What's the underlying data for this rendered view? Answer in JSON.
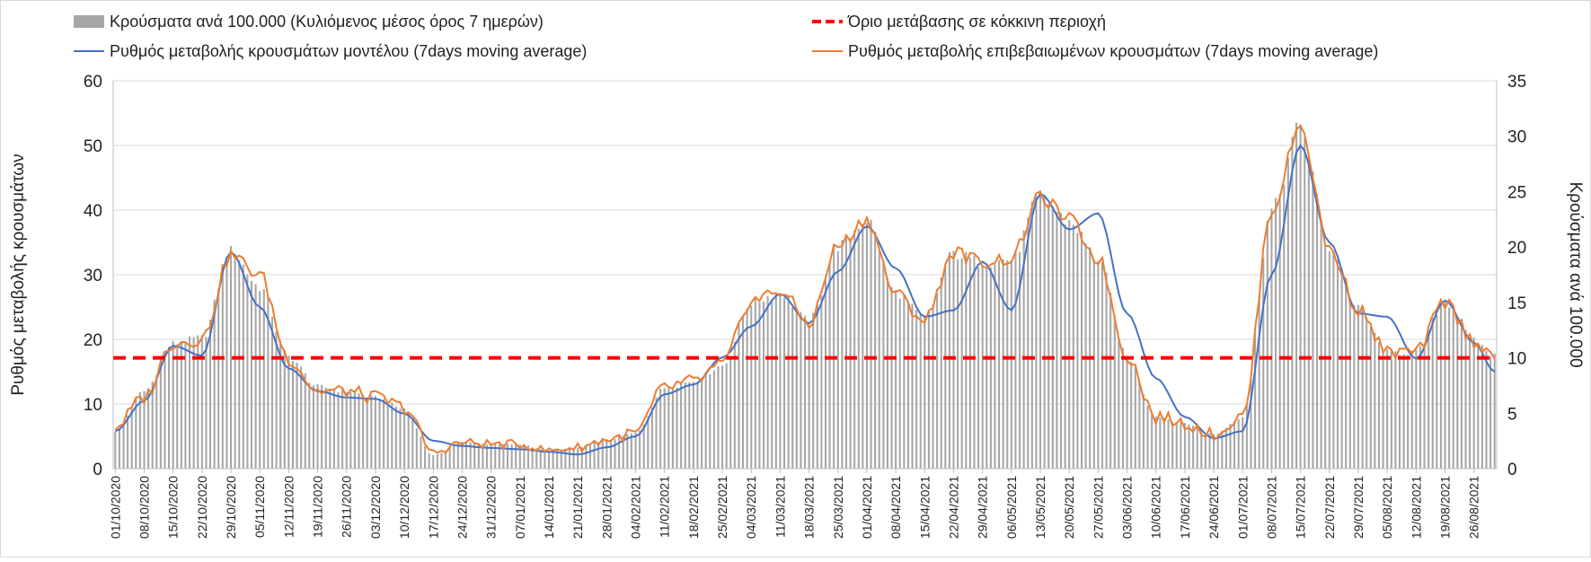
{
  "chart_data": {
    "type": "combo",
    "legend": {
      "bars_label": "Κρούσματα ανά 100.000 (Κυλιόμενος μέσος όρος 7 ημερών)",
      "threshold_label": "Όριο μετάβασης σε κόκκινη περιοχή",
      "model_label": "Ρυθμός μεταβολής κρουσμάτων μοντέλου (7days moving average)",
      "confirmed_label": "Ρυθμός μεταβολής επιβεβαιωμένων κρουσμάτων (7days moving average)",
      "placement": "top"
    },
    "ylabel_left": "Ρυθμός μεταβολής κρουσμάτων",
    "ylabel_right": "Κρούσματα ανά 100.000",
    "ylim_left": [
      0,
      60
    ],
    "ylim_right": [
      0,
      35
    ],
    "yticks_left": [
      "0",
      "10",
      "20",
      "30",
      "40",
      "50",
      "60"
    ],
    "yticks_right": [
      "0",
      "5",
      "10",
      "15",
      "20",
      "25",
      "30",
      "35"
    ],
    "x_start": "2020-10-01",
    "x_end": "2021-08-31",
    "x_tick_labels": [
      "01/10/2020",
      "08/10/2020",
      "15/10/2020",
      "22/10/2020",
      "29/10/2020",
      "05/11/2020",
      "12/11/2020",
      "19/11/2020",
      "26/11/2020",
      "03/12/2020",
      "10/12/2020",
      "17/12/2020",
      "24/12/2020",
      "31/12/2020",
      "07/01/2021",
      "14/01/2021",
      "21/01/2021",
      "28/01/2021",
      "04/02/2021",
      "11/02/2021",
      "18/02/2021",
      "25/02/2021",
      "04/03/2021",
      "11/03/2021",
      "18/03/2021",
      "25/03/2021",
      "01/04/2021",
      "08/04/2021",
      "15/04/2021",
      "22/04/2021",
      "29/04/2021",
      "06/05/2021",
      "13/05/2021",
      "20/05/2021",
      "27/05/2021",
      "03/06/2021",
      "10/06/2021",
      "17/06/2021",
      "24/06/2021",
      "01/07/2021",
      "08/07/2021",
      "15/07/2021",
      "22/07/2021",
      "29/07/2021",
      "05/08/2021",
      "12/08/2021",
      "19/08/2021",
      "26/08/2021"
    ],
    "grid": true,
    "threshold_right": 10,
    "colors": {
      "bars": "#a6a6a6",
      "model": "#4472c4",
      "confirmed": "#ed7d31",
      "threshold": "#ff0000",
      "grid": "#d9d9d9"
    },
    "series": [
      {
        "axis": "right",
        "kind": "bar",
        "points": [
          [
            "2020-10-01",
            3.4
          ],
          [
            "2020-10-08",
            7
          ],
          [
            "2020-10-15",
            11.3
          ],
          [
            "2020-10-22",
            11.8
          ],
          [
            "2020-10-29",
            19.6
          ],
          [
            "2020-11-05",
            16.4
          ],
          [
            "2020-11-12",
            10.1
          ],
          [
            "2020-11-19",
            7.4
          ],
          [
            "2020-11-26",
            7
          ],
          [
            "2020-12-03",
            6.4
          ],
          [
            "2020-12-10",
            5.4
          ],
          [
            "2020-12-17",
            1.2
          ],
          [
            "2020-12-24",
            2.4
          ],
          [
            "2020-12-31",
            2.2
          ],
          [
            "2021-01-07",
            2.2
          ],
          [
            "2021-01-14",
            1.6
          ],
          [
            "2021-01-21",
            1.9
          ],
          [
            "2021-01-28",
            2.6
          ],
          [
            "2021-02-04",
            3.2
          ],
          [
            "2021-02-11",
            7.3
          ],
          [
            "2021-02-18",
            7.9
          ],
          [
            "2021-02-25",
            9.3
          ],
          [
            "2021-03-04",
            15
          ],
          [
            "2021-03-11",
            15.9
          ],
          [
            "2021-03-18",
            13.3
          ],
          [
            "2021-03-25",
            20.1
          ],
          [
            "2021-04-01",
            22.5
          ],
          [
            "2021-04-08",
            15.9
          ],
          [
            "2021-04-15",
            13.6
          ],
          [
            "2021-04-22",
            19.4
          ],
          [
            "2021-04-29",
            18.6
          ],
          [
            "2021-05-06",
            18.9
          ],
          [
            "2021-05-13",
            24.5
          ],
          [
            "2021-05-20",
            22.3
          ],
          [
            "2021-05-27",
            19
          ],
          [
            "2021-06-03",
            10.1
          ],
          [
            "2021-06-10",
            4.7
          ],
          [
            "2021-06-17",
            4.1
          ],
          [
            "2021-06-24",
            3.1
          ],
          [
            "2021-07-01",
            4.7
          ],
          [
            "2021-07-08",
            23.3
          ],
          [
            "2021-07-15",
            30.9
          ],
          [
            "2021-07-22",
            19.9
          ],
          [
            "2021-07-29",
            14.4
          ],
          [
            "2021-08-05",
            10.5
          ],
          [
            "2021-08-12",
            10.5
          ],
          [
            "2021-08-19",
            15.1
          ],
          [
            "2021-08-26",
            11.5
          ],
          [
            "2021-08-31",
            10.2
          ]
        ]
      },
      {
        "axis": "left",
        "kind": "line",
        "legend_key": "model",
        "points": [
          [
            "2020-10-01",
            5.8
          ],
          [
            "2020-10-08",
            10.5
          ],
          [
            "2020-10-15",
            19
          ],
          [
            "2020-10-22",
            17.5
          ],
          [
            "2020-10-29",
            33.5
          ],
          [
            "2020-11-05",
            25
          ],
          [
            "2020-11-12",
            15.5
          ],
          [
            "2020-11-19",
            12
          ],
          [
            "2020-11-26",
            11
          ],
          [
            "2020-12-03",
            10.8
          ],
          [
            "2020-12-10",
            8.5
          ],
          [
            "2020-12-17",
            4.3
          ],
          [
            "2020-12-24",
            3.5
          ],
          [
            "2020-12-31",
            3.2
          ],
          [
            "2021-01-07",
            3
          ],
          [
            "2021-01-14",
            2.6
          ],
          [
            "2021-01-21",
            2.2
          ],
          [
            "2021-01-28",
            3.3
          ],
          [
            "2021-02-04",
            5
          ],
          [
            "2021-02-11",
            11.5
          ],
          [
            "2021-02-18",
            13
          ],
          [
            "2021-02-25",
            17.2
          ],
          [
            "2021-03-04",
            22
          ],
          [
            "2021-03-11",
            27
          ],
          [
            "2021-03-18",
            22.5
          ],
          [
            "2021-03-25",
            30.5
          ],
          [
            "2021-04-01",
            37.5
          ],
          [
            "2021-04-08",
            31
          ],
          [
            "2021-04-15",
            23.5
          ],
          [
            "2021-04-22",
            24.5
          ],
          [
            "2021-04-29",
            32
          ],
          [
            "2021-05-06",
            24.5
          ],
          [
            "2021-05-13",
            42.5
          ],
          [
            "2021-05-20",
            37
          ],
          [
            "2021-05-27",
            39.5
          ],
          [
            "2021-06-03",
            24
          ],
          [
            "2021-06-10",
            14
          ],
          [
            "2021-06-17",
            8
          ],
          [
            "2021-06-24",
            4.7
          ],
          [
            "2021-07-01",
            5.8
          ],
          [
            "2021-07-08",
            30
          ],
          [
            "2021-07-15",
            50
          ],
          [
            "2021-07-22",
            35
          ],
          [
            "2021-07-29",
            24
          ],
          [
            "2021-08-05",
            23.5
          ],
          [
            "2021-08-12",
            17
          ],
          [
            "2021-08-19",
            26
          ],
          [
            "2021-08-26",
            19.5
          ],
          [
            "2021-08-31",
            15
          ]
        ]
      },
      {
        "axis": "left",
        "kind": "line",
        "legend_key": "confirmed",
        "points": [
          [
            "2020-10-01",
            6.5
          ],
          [
            "2020-10-08",
            11
          ],
          [
            "2020-10-15",
            19.5
          ],
          [
            "2020-10-22",
            20
          ],
          [
            "2020-10-29",
            33
          ],
          [
            "2020-11-05",
            30
          ],
          [
            "2020-11-12",
            17
          ],
          [
            "2020-11-19",
            12
          ],
          [
            "2020-11-26",
            12
          ],
          [
            "2020-12-03",
            11
          ],
          [
            "2020-12-10",
            9.5
          ],
          [
            "2020-12-17",
            2.5
          ],
          [
            "2020-12-24",
            4
          ],
          [
            "2020-12-31",
            3.8
          ],
          [
            "2021-01-07",
            3.7
          ],
          [
            "2021-01-14",
            2.8
          ],
          [
            "2021-01-21",
            3.3
          ],
          [
            "2021-01-28",
            4.5
          ],
          [
            "2021-02-04",
            5.5
          ],
          [
            "2021-02-11",
            12.5
          ],
          [
            "2021-02-18",
            13.5
          ],
          [
            "2021-02-25",
            16
          ],
          [
            "2021-03-04",
            26
          ],
          [
            "2021-03-11",
            27.5
          ],
          [
            "2021-03-18",
            22.5
          ],
          [
            "2021-03-25",
            34.5
          ],
          [
            "2021-04-01",
            38.5
          ],
          [
            "2021-04-08",
            27
          ],
          [
            "2021-04-15",
            23
          ],
          [
            "2021-04-22",
            33.5
          ],
          [
            "2021-04-29",
            32
          ],
          [
            "2021-05-06",
            32.5
          ],
          [
            "2021-05-13",
            42
          ],
          [
            "2021-05-20",
            38.5
          ],
          [
            "2021-05-27",
            32.5
          ],
          [
            "2021-06-03",
            17.5
          ],
          [
            "2021-06-10",
            8
          ],
          [
            "2021-06-17",
            7
          ],
          [
            "2021-06-24",
            5.3
          ],
          [
            "2021-07-01",
            8
          ],
          [
            "2021-07-08",
            40
          ],
          [
            "2021-07-15",
            53
          ],
          [
            "2021-07-22",
            34
          ],
          [
            "2021-07-29",
            24.7
          ],
          [
            "2021-08-05",
            18
          ],
          [
            "2021-08-12",
            18
          ],
          [
            "2021-08-19",
            25.8
          ],
          [
            "2021-08-26",
            19.8
          ],
          [
            "2021-08-31",
            17.5
          ]
        ]
      }
    ]
  }
}
